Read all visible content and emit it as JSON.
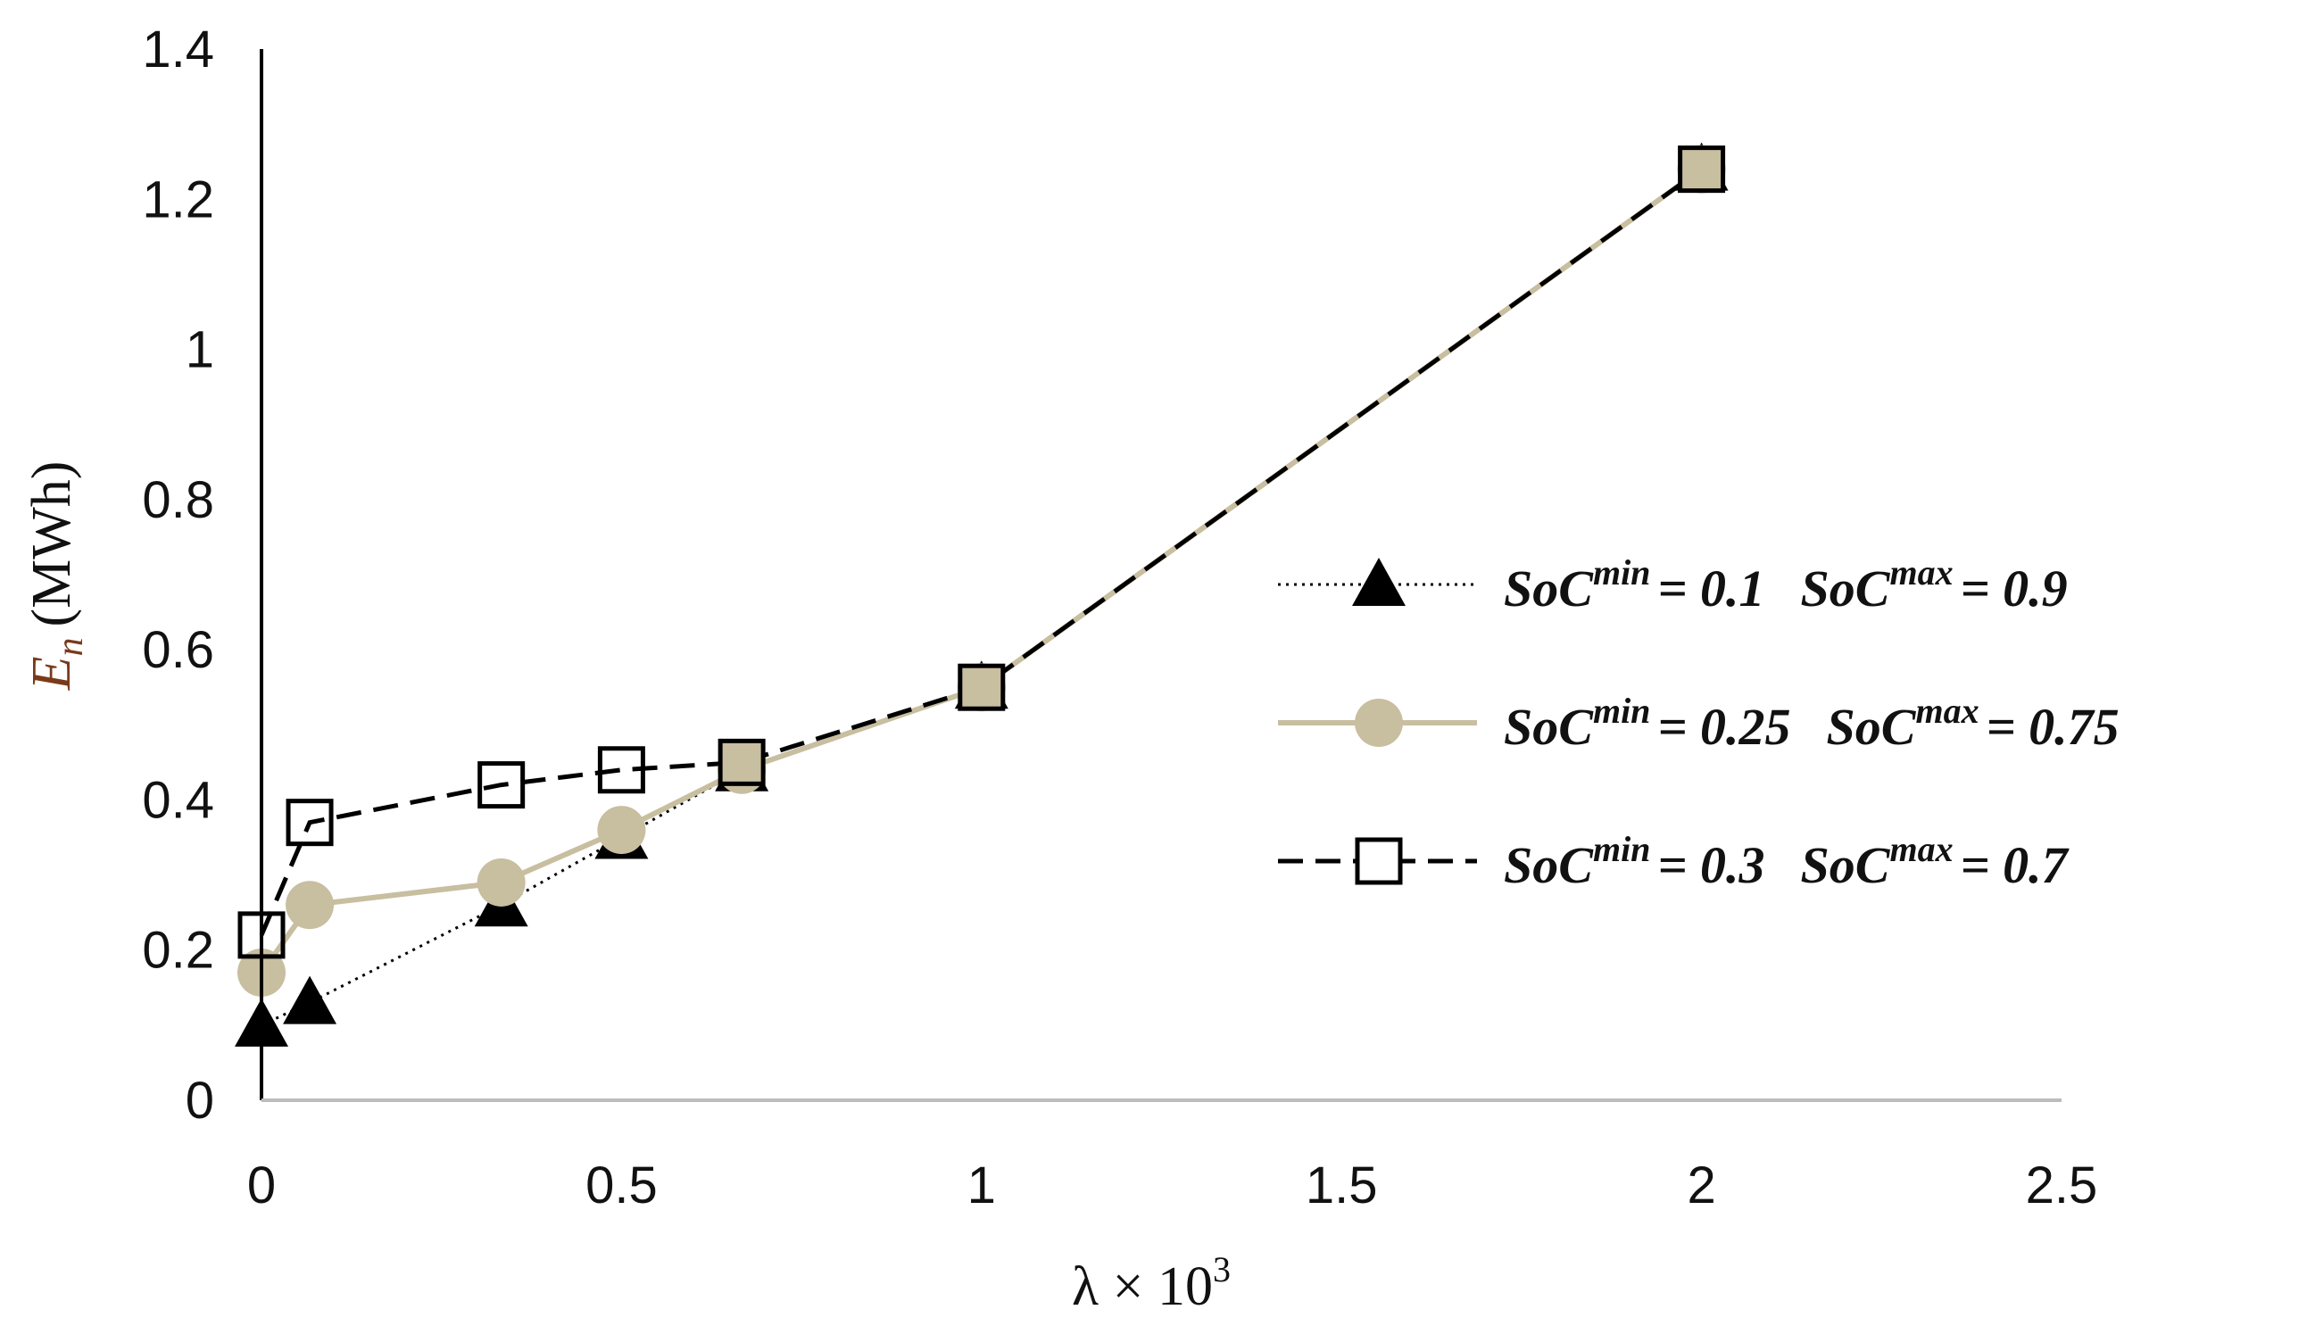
{
  "chart_data": {
    "type": "line",
    "title": "",
    "xlabel": "λ × 10",
    "xlabel_superscript": "3",
    "ylabel": "E",
    "ylabel_subscript": "n",
    "ylabel_unit": "(MWh)",
    "xlim": [
      0,
      2.5
    ],
    "ylim": [
      0,
      1.4
    ],
    "x_ticks": [
      "0",
      "0.5",
      "1",
      "1.5",
      "2",
      "2.5"
    ],
    "y_ticks": [
      "0",
      "0.2",
      "0.4",
      "0.6",
      "0.8",
      "1",
      "1.2",
      "1.4"
    ],
    "grid": false,
    "legend_position": "right",
    "series": [
      {
        "name": "SoC^min = 0.1  SoC^max = 0.9",
        "legend": {
          "min_text": "SoC",
          "min_sup": "min",
          "min_val": "= 0.1",
          "max_text": "SoC",
          "max_sup": "max",
          "max_val": "= 0.9"
        },
        "marker": "triangle",
        "line_style": "dotted",
        "color": "#000000",
        "x": [
          0,
          0.067,
          0.333,
          0.5,
          0.667,
          1,
          2
        ],
        "y": [
          0.1,
          0.13,
          0.26,
          0.35,
          0.44,
          0.55,
          1.24
        ]
      },
      {
        "name": "SoC^min = 0.25  SoC^max = 0.75",
        "legend": {
          "min_text": "SoC",
          "min_sup": "min",
          "min_val": "= 0.25",
          "max_text": "SoC",
          "max_sup": "max",
          "max_val": "= 0.75"
        },
        "marker": "circle",
        "line_style": "solid",
        "color": "#c8bea0",
        "x": [
          0,
          0.067,
          0.333,
          0.5,
          0.667,
          1,
          2
        ],
        "y": [
          0.17,
          0.26,
          0.29,
          0.36,
          0.44,
          0.55,
          1.24
        ]
      },
      {
        "name": "SoC^min = 0.3  SoC^max = 0.7",
        "legend": {
          "min_text": "SoC",
          "min_sup": "min",
          "min_val": "= 0.3",
          "max_text": "SoC",
          "max_sup": "max",
          "max_val": "= 0.7"
        },
        "marker": "square",
        "line_style": "dashed",
        "color": "#000000",
        "x": [
          0,
          0.067,
          0.333,
          0.5,
          0.667,
          1,
          2
        ],
        "y": [
          0.22,
          0.37,
          0.42,
          0.44,
          0.45,
          0.55,
          1.24
        ]
      }
    ]
  }
}
